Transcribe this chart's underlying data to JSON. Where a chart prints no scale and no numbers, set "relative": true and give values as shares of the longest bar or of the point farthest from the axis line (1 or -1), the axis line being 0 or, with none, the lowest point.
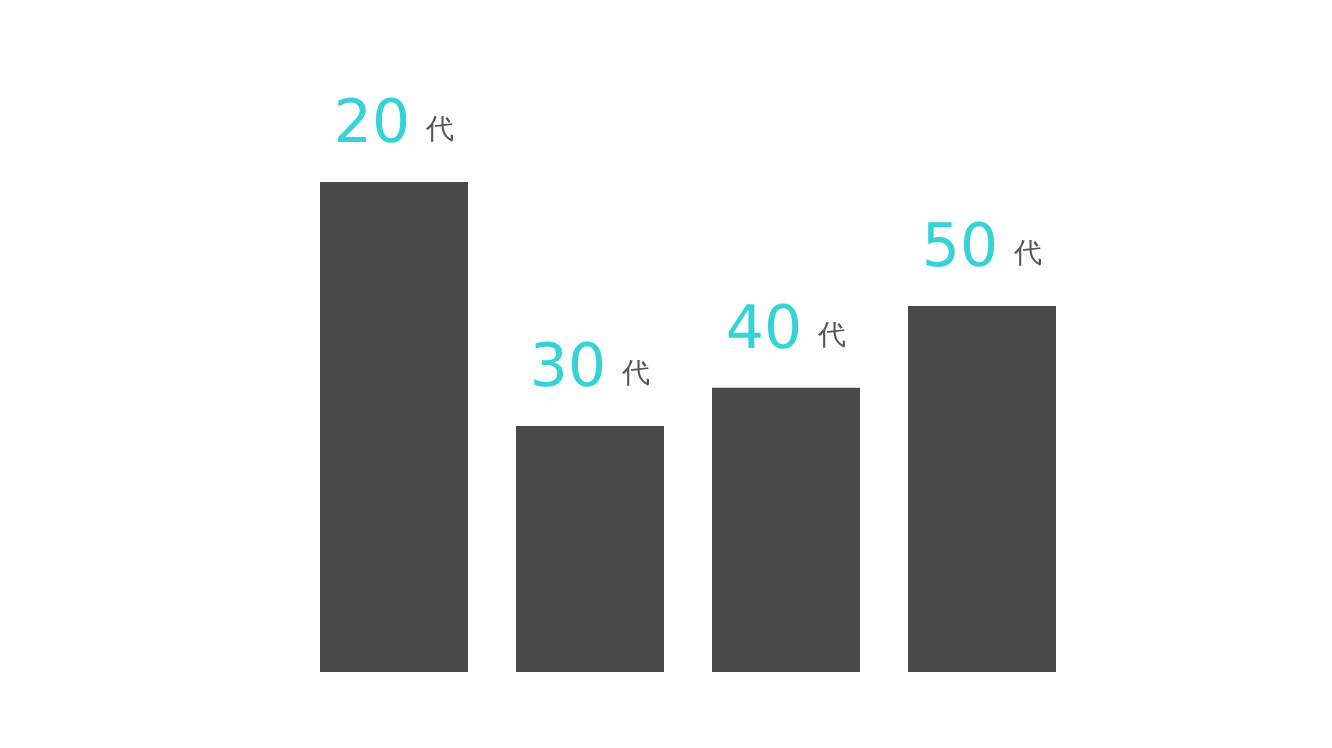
{
  "chart_data": {
    "type": "bar",
    "relative": true,
    "categories": [
      "20代",
      "30代",
      "40代",
      "50代"
    ],
    "values": [
      1,
      0.502,
      0.58,
      0.747
    ],
    "color": "#4a4a4a",
    "legend": false,
    "tick_labels": false
  }
}
